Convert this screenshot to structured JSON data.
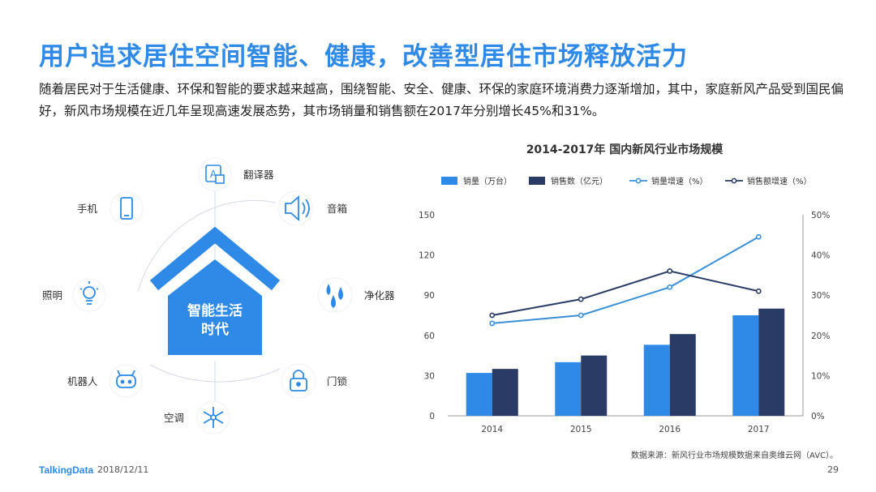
{
  "title": "用户追求居住空间智能、健康，改善型居住市场释放活力",
  "description": "随着居民对于生活健康、环保和智能的要求越来越高，围绕智能、安全、健康、环保的家庭环境消费力逐渐增加，其中，家庭新风产品受到国民偏好，新风市场规模在近几年呈现高速发展态势，其市场销量和销售额在2017年分别增长45%和31%。",
  "diagram": {
    "center_line1": "智能生活",
    "center_line2": "时代",
    "items": [
      {
        "label": "翻译器",
        "icon": "translate-icon"
      },
      {
        "label": "音箱",
        "icon": "speaker-icon"
      },
      {
        "label": "净化器",
        "icon": "droplets-icon"
      },
      {
        "label": "门锁",
        "icon": "lock-icon"
      },
      {
        "label": "空调",
        "icon": "snowflake-icon"
      },
      {
        "label": "机器人",
        "icon": "robot-icon"
      },
      {
        "label": "照明",
        "icon": "bulb-icon"
      },
      {
        "label": "手机",
        "icon": "phone-icon"
      }
    ],
    "accent": "#2e8ae6"
  },
  "chart_data": {
    "type": "bar",
    "title": "2014-2017年  国内新风行业市场规模",
    "categories": [
      "2014",
      "2015",
      "2016",
      "2017"
    ],
    "series": [
      {
        "name": "销量（万台）",
        "kind": "bar",
        "axis": "left",
        "color": "#2e8ae6",
        "values": [
          32,
          40,
          53,
          75
        ]
      },
      {
        "name": "销售数（亿元）",
        "kind": "bar",
        "axis": "left",
        "color": "#2a3b66",
        "values": [
          35,
          45,
          61,
          80
        ]
      },
      {
        "name": "销量增速（%）",
        "kind": "line",
        "axis": "right",
        "color": "#3a8fd6",
        "values": [
          23,
          25,
          32,
          44.5
        ]
      },
      {
        "name": "销售额增速（%）",
        "kind": "line",
        "axis": "right",
        "color": "#2a3b66",
        "values": [
          25,
          29,
          36,
          31
        ]
      }
    ],
    "y_left": {
      "range": [
        0,
        150
      ],
      "ticks": [
        "0",
        "30",
        "60",
        "90",
        "120",
        "150"
      ]
    },
    "y_right": {
      "range": [
        0,
        50
      ],
      "ticks": [
        "0%",
        "10%",
        "20%",
        "30%",
        "40%",
        "50%"
      ]
    },
    "legend": "top",
    "grid": false
  },
  "source": "数据来源：新风行业市场规模数据来自奥维云网（AVC）。",
  "footer": {
    "logo": "TalkingData",
    "date": "2018/12/11",
    "page": "29"
  }
}
